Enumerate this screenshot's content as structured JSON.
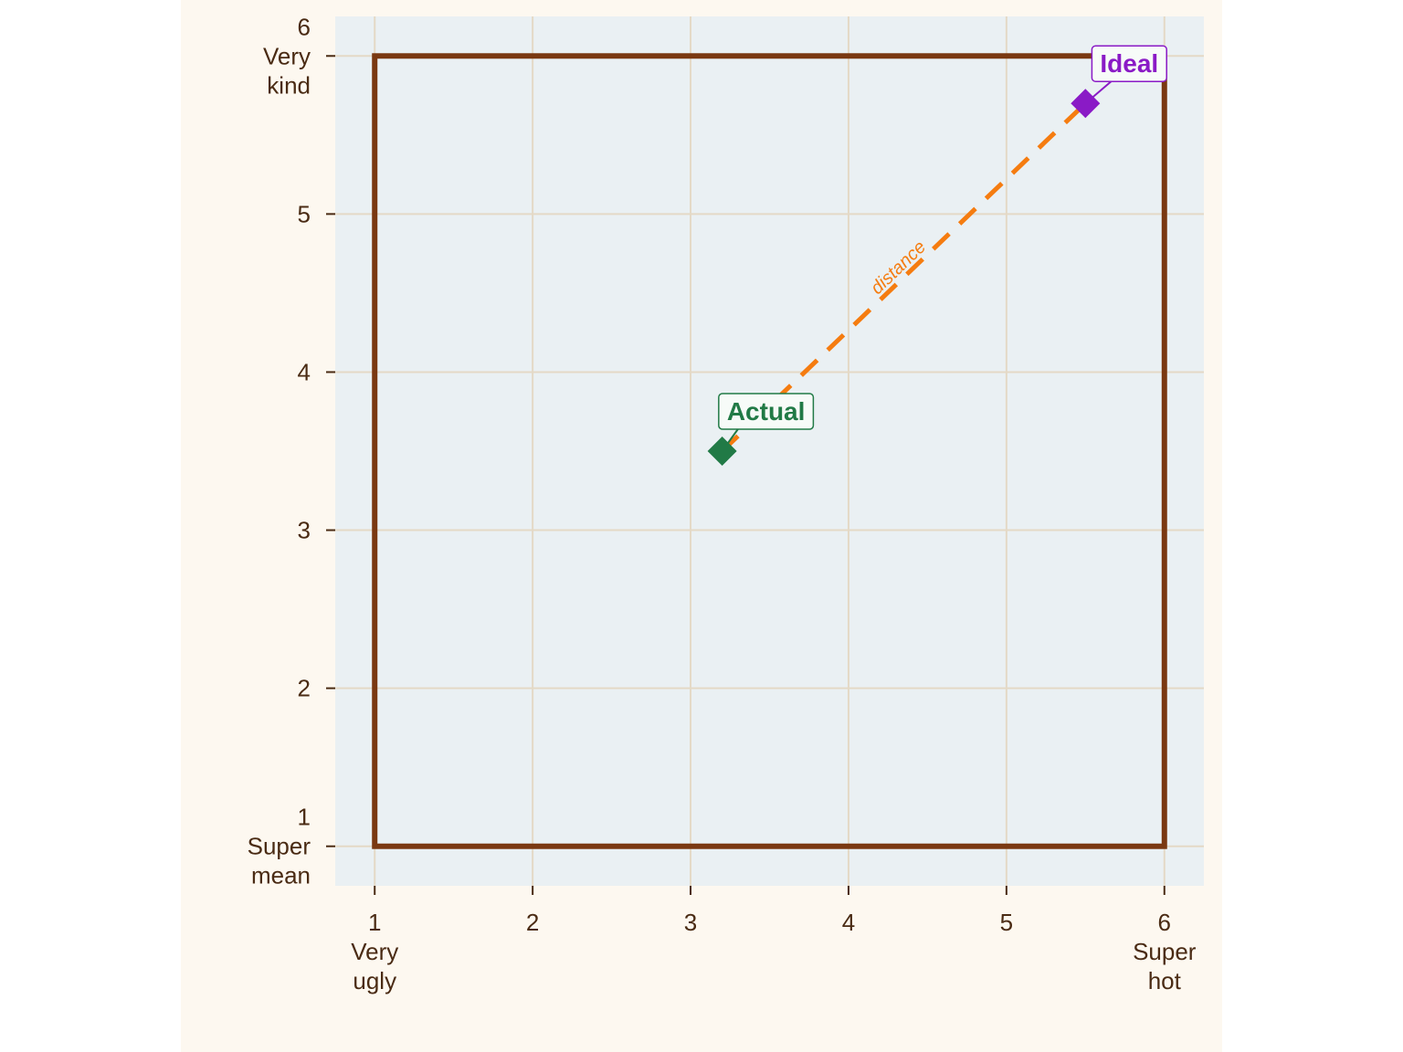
{
  "chart_data": {
    "type": "scatter",
    "xlim": [
      0.75,
      6.25
    ],
    "ylim": [
      0.75,
      6.25
    ],
    "xticks": [
      {
        "value": 1,
        "label": "1\nVery\nugly"
      },
      2,
      3,
      4,
      5,
      {
        "value": 6,
        "label": "6\nSuper\nhot"
      }
    ],
    "yticks": [
      {
        "value": 1,
        "label": "1\nSuper\nmean"
      },
      2,
      3,
      4,
      5,
      {
        "value": 6,
        "label": "6\nVery\nkind"
      }
    ],
    "grid": true,
    "boundary": {
      "x": [
        1,
        6
      ],
      "y": [
        1,
        6
      ],
      "color": "#7a3811"
    },
    "series": [
      {
        "name": "Actual",
        "color": "#217a46",
        "x": [
          3.2
        ],
        "y": [
          3.5
        ]
      },
      {
        "name": "Ideal",
        "color": "#8a1ac6",
        "x": [
          5.5
        ],
        "y": [
          5.7
        ]
      }
    ],
    "segment": {
      "label": "distance",
      "color": "#f57c10"
    }
  }
}
